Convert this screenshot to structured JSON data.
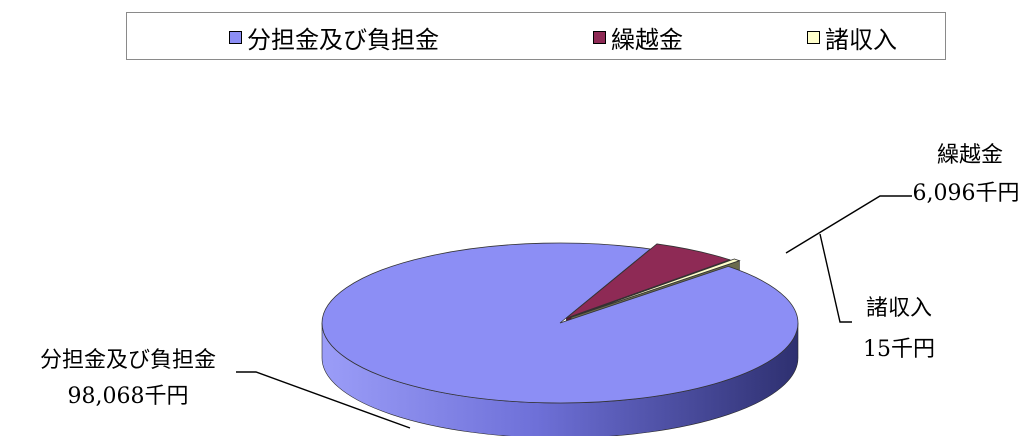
{
  "chart_data": {
    "type": "pie",
    "categories": [
      "分担金及び負担金",
      "繰越金",
      "諸収入"
    ],
    "values": [
      98068,
      6096,
      15
    ],
    "value_labels": [
      "98,068千円",
      "6,096千円",
      "15千円"
    ],
    "colors": [
      "#8c8ef5",
      "#8e2a55",
      "#ffffcc"
    ],
    "legend_position": "top"
  }
}
